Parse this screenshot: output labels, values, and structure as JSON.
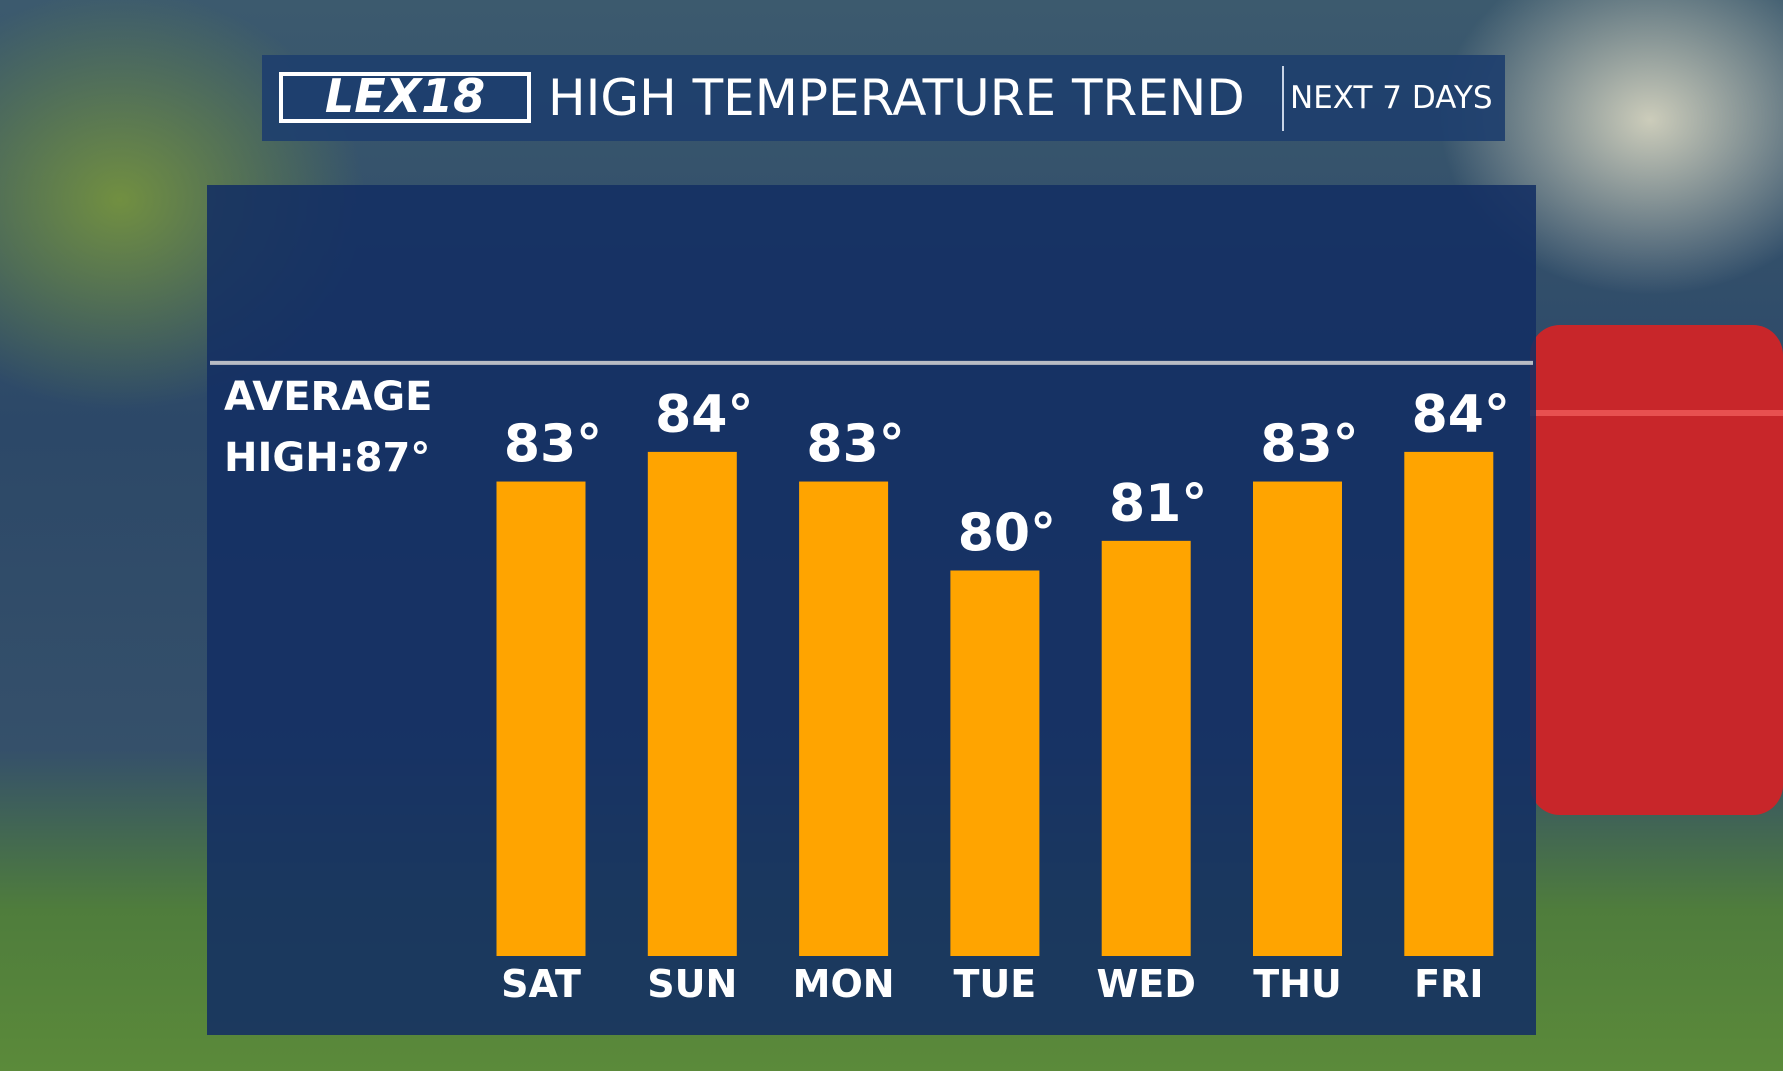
{
  "chart_data": {
    "type": "bar",
    "logo": "LEX18",
    "title": "HIGH TEMPERATURE TREND",
    "subtitle": "NEXT 7 DAYS",
    "categories": [
      "SAT",
      "SUN",
      "MON",
      "TUE",
      "WED",
      "THU",
      "FRI"
    ],
    "values": [
      83,
      84,
      83,
      80,
      81,
      83,
      84
    ],
    "value_labels": [
      "83°",
      "84°",
      "83°",
      "80°",
      "81°",
      "83°",
      "84°"
    ],
    "color": "#ffa400",
    "ylim": [
      67,
      93
    ],
    "average": {
      "value": 87,
      "label": [
        "AVERAGE",
        "HIGH:87°"
      ]
    }
  }
}
